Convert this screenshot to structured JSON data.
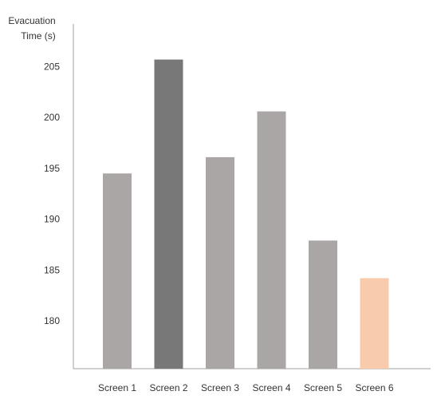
{
  "chart_data": {
    "type": "bar",
    "title": "",
    "ylabel": [
      "Evacuation",
      "Time (s)"
    ],
    "xlabel": "",
    "categories": [
      "Screen 1",
      "Screen 2",
      "Screen 3",
      "Screen 4",
      "Screen 5",
      "Screen 6"
    ],
    "values": [
      194.5,
      205.7,
      196.1,
      200.6,
      187.9,
      184.2
    ],
    "ylim": [
      175.3,
      209.2
    ],
    "yticks": [
      "180",
      "185",
      "190",
      "195",
      "200",
      "205"
    ],
    "bar_colors": [
      "#aaa6a5",
      "#787878",
      "#aaa6a5",
      "#aaa6a5",
      "#aaa6a5",
      "#f8cbad"
    ],
    "grid": false,
    "legend": "none"
  }
}
